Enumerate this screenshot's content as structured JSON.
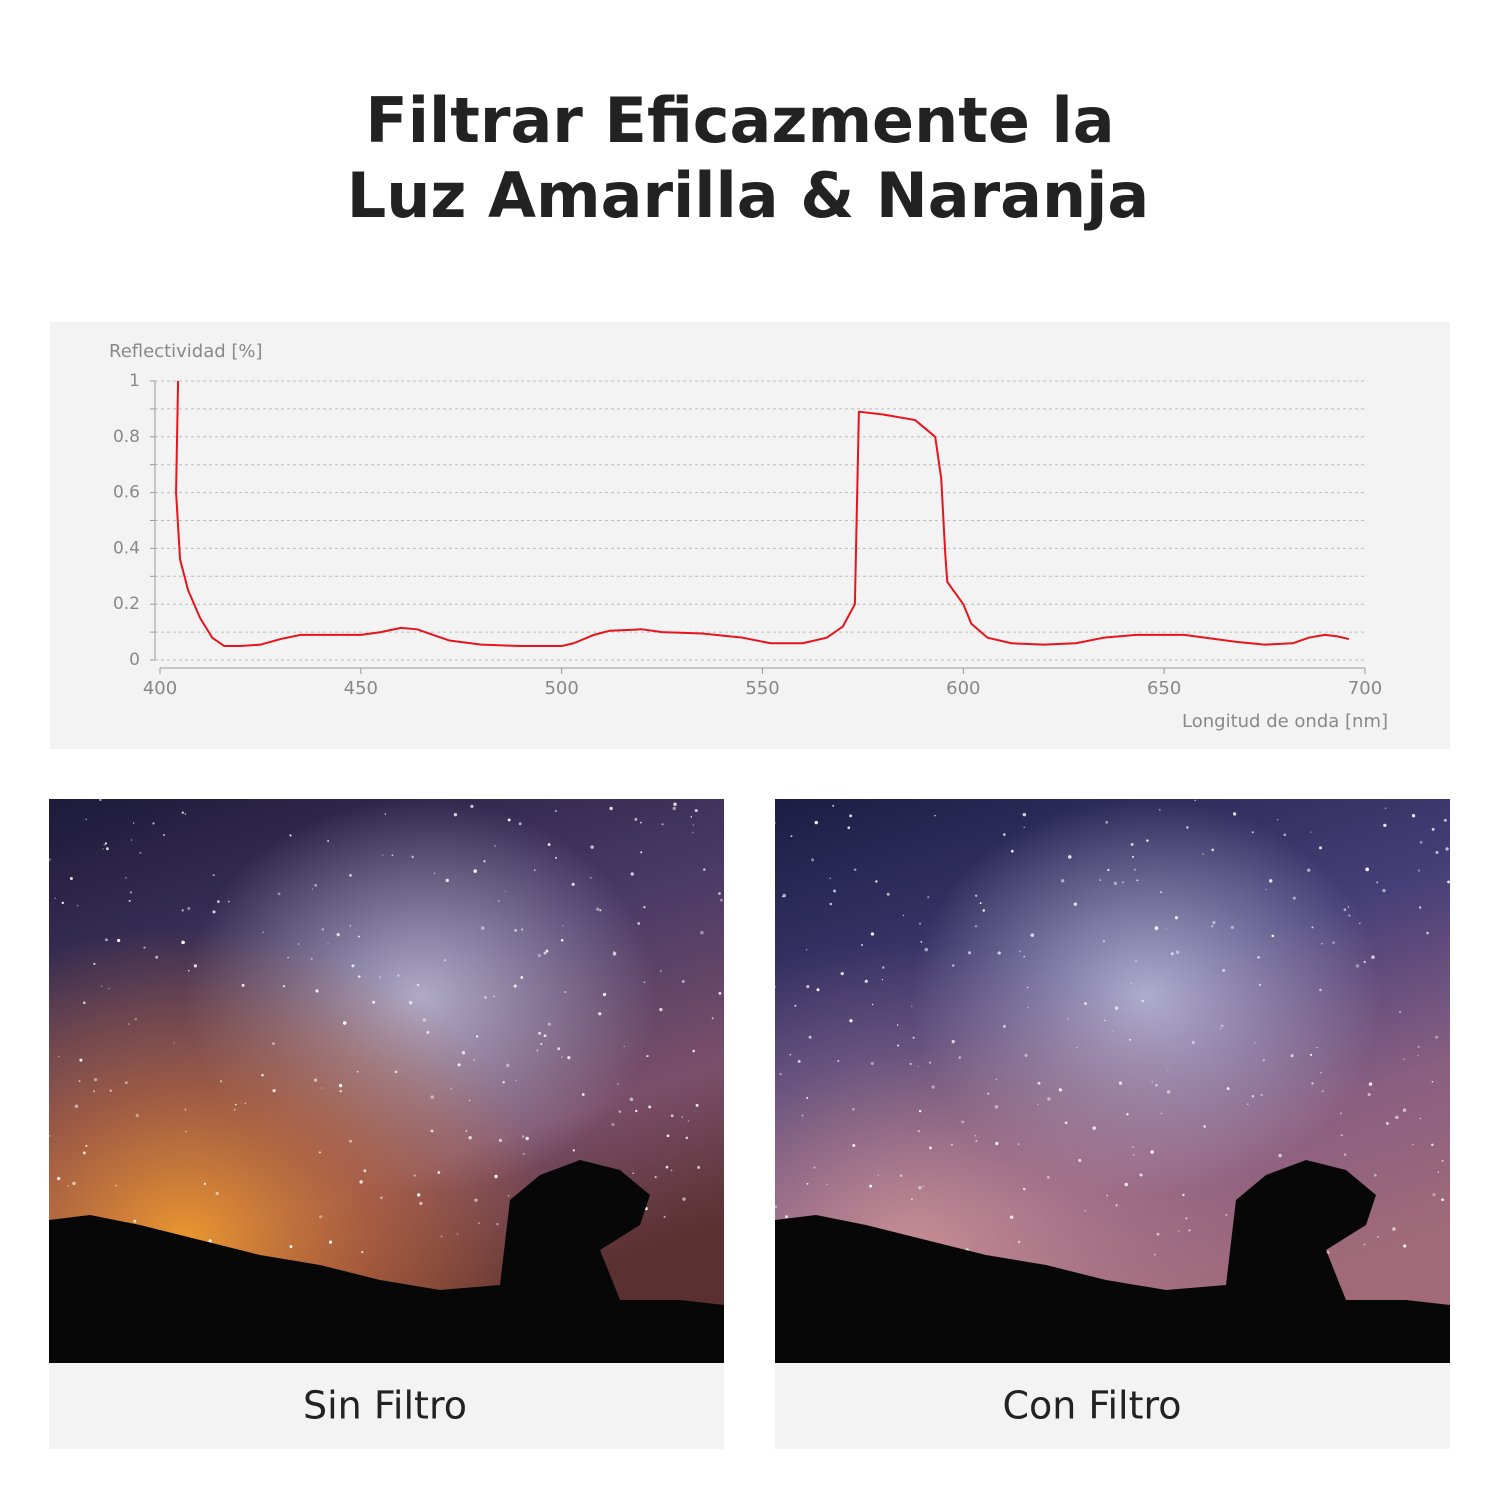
{
  "header": {
    "title": [
      "Filtrar Eficazmente la",
      "Luz Amarilla & Naranja"
    ]
  },
  "chart_data": {
    "type": "line",
    "y_label": "Reflectividad [%]",
    "x_label": "Longitud de onda [nm]",
    "x": [
      404.5,
      404,
      405,
      407,
      410,
      413,
      416,
      420,
      425,
      430,
      435,
      440,
      450,
      455,
      460,
      464,
      468,
      472,
      480,
      490,
      500,
      503,
      508,
      512,
      520,
      525,
      535,
      545,
      552,
      560,
      566,
      570,
      573,
      574,
      580,
      588,
      593,
      594.5,
      595.5,
      596,
      598,
      600,
      602,
      606,
      612,
      620,
      628,
      635,
      643,
      655,
      668,
      675,
      682,
      686,
      690,
      693,
      696
    ],
    "values": [
      1.0,
      0.6,
      0.36,
      0.25,
      0.15,
      0.08,
      0.05,
      0.05,
      0.055,
      0.075,
      0.09,
      0.09,
      0.09,
      0.1,
      0.115,
      0.11,
      0.09,
      0.07,
      0.055,
      0.05,
      0.05,
      0.06,
      0.09,
      0.105,
      0.11,
      0.1,
      0.095,
      0.08,
      0.06,
      0.06,
      0.08,
      0.12,
      0.2,
      0.89,
      0.88,
      0.86,
      0.8,
      0.65,
      0.38,
      0.28,
      0.24,
      0.2,
      0.13,
      0.08,
      0.06,
      0.055,
      0.06,
      0.08,
      0.09,
      0.09,
      0.065,
      0.055,
      0.06,
      0.08,
      0.09,
      0.085,
      0.075
    ],
    "color": "#e8141c",
    "xlim": [
      400,
      700
    ],
    "xticks": [
      400,
      450,
      500,
      550,
      600,
      650,
      700
    ],
    "ylim": [
      0,
      1
    ],
    "yticks": [
      0,
      0.2,
      0.4,
      0.6,
      0.8,
      1
    ],
    "minor_yticks": [
      0.1,
      0.3,
      0.5,
      0.7,
      0.9
    ],
    "grid": true
  },
  "panels": [
    {
      "caption": "Sin Filtro"
    },
    {
      "caption": "Con Filtro"
    }
  ]
}
